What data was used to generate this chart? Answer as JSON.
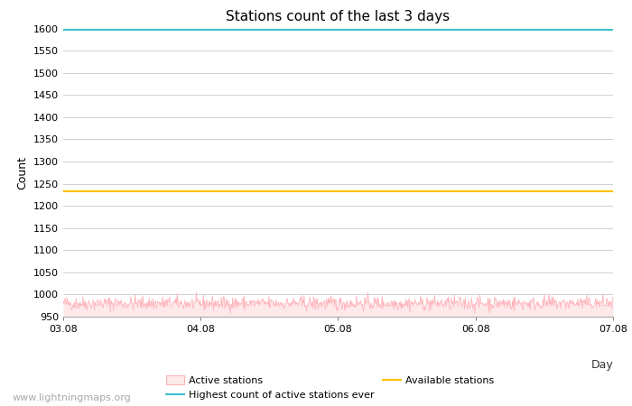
{
  "title": "Stations count of the last 3 days",
  "xlabel": "Day",
  "ylabel": "Count",
  "ylim": [
    950,
    1600
  ],
  "yticks": [
    950,
    1000,
    1050,
    1100,
    1150,
    1200,
    1250,
    1300,
    1350,
    1400,
    1450,
    1500,
    1550,
    1600
  ],
  "x_start": 0,
  "x_end": 288,
  "xtick_labels": [
    "03.08",
    "04.08",
    "05.08",
    "06.08",
    "07.08"
  ],
  "xtick_positions": [
    0,
    72,
    144,
    216,
    288
  ],
  "active_stations_mean": 980,
  "active_stations_noise": 8,
  "available_stations_level": 1233,
  "highest_ever_level": 1596,
  "active_color": "#ffb3ba",
  "active_fill_color": "#fde8ea",
  "available_color": "#ffc000",
  "highest_color": "#40c0d0",
  "background_color": "#ffffff",
  "grid_color": "#d0d0d0",
  "title_fontsize": 11,
  "axis_fontsize": 9,
  "tick_fontsize": 8,
  "watermark": "www.lightningmaps.org",
  "watermark_fontsize": 8
}
